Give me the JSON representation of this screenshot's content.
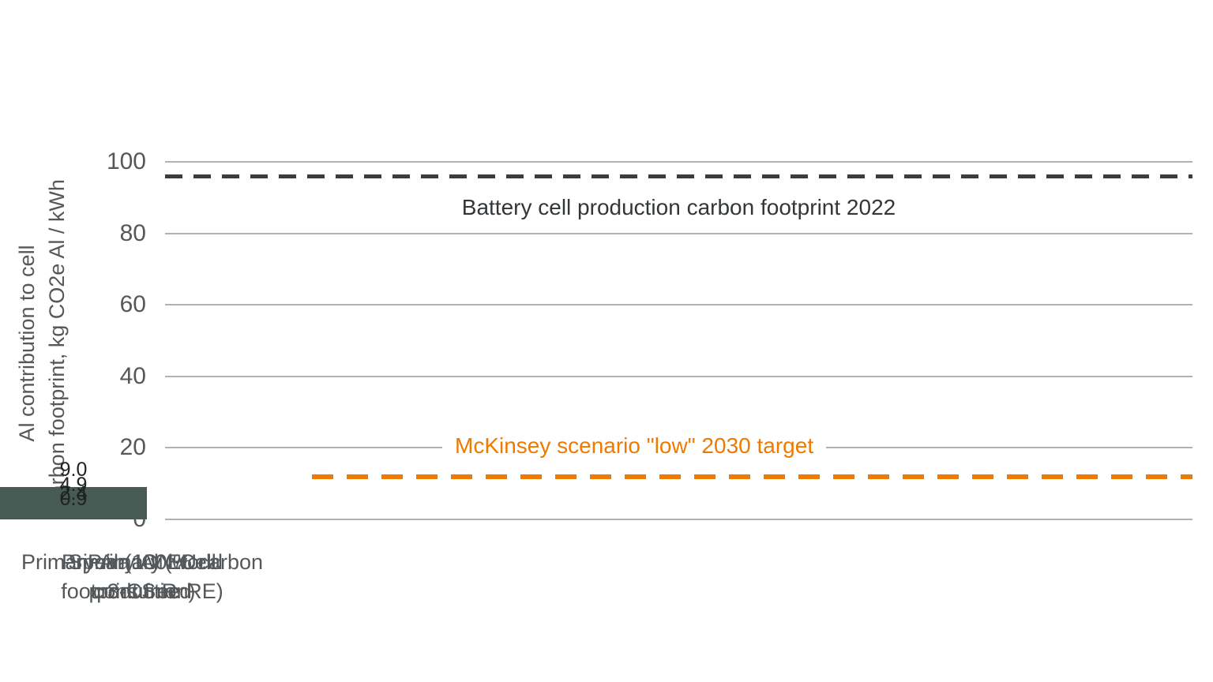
{
  "chart_data": {
    "type": "bar",
    "categories": [
      "Primary Al (world\nproduction)",
      "Primary EU\nconsumed",
      "Primary Al (100 % carbon\nfootprint free RE)",
      "Speira ION Cell\n3-CS R"
    ],
    "values": [
      9.0,
      4.9,
      2.4,
      0.9
    ],
    "value_labels": [
      "9.0",
      "4.9",
      "2.4",
      "0.9"
    ],
    "ylabel": "Al contribution to cell\ncarbon footprint, kg CO2e Al / kWh",
    "ylim": [
      0,
      100
    ],
    "yticks": [
      0,
      20,
      40,
      60,
      80,
      100
    ],
    "grid": true,
    "legend_position": "none",
    "bar_color": "#475a53",
    "gridline_color": "#aab5af",
    "reference_lines": [
      {
        "name": "battery-cell-2022",
        "value": 96,
        "label": "Battery cell production carbon footprint 2022",
        "color": "#3a3d3c",
        "style": "dashed"
      },
      {
        "name": "mckinsey-low-2030",
        "value": 12,
        "label": "McKinsey scenario \"low\" 2030 target",
        "color": "#ee7a00",
        "style": "dashed"
      }
    ]
  }
}
